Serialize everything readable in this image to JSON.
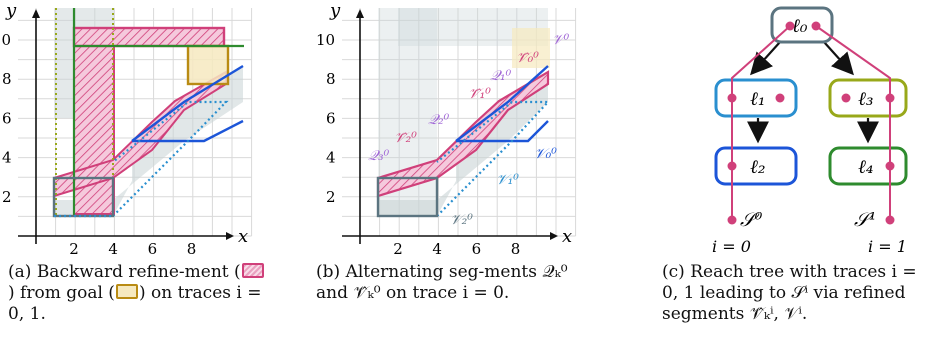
{
  "panel_a": {
    "axis_x": "x",
    "axis_y": "y",
    "x_ticks": [
      "2",
      "4",
      "6",
      "8"
    ],
    "y_ticks": [
      "2",
      "4",
      "6",
      "8",
      "10"
    ],
    "caption": {
      "label": "(a)",
      "part1": "Backward refine-ment (",
      "part2": ") from goal (",
      "part3": ") on traces i = 0, 1."
    }
  },
  "panel_b": {
    "axis_x": "x",
    "axis_y": "y",
    "x_ticks": [
      "2",
      "4",
      "6",
      "8"
    ],
    "y_ticks": [
      "2",
      "4",
      "6",
      "8",
      "10"
    ],
    "labels": {
      "v0_top": "𝒱⁰",
      "v0": "𝒱₀⁰",
      "v1": "𝒱₁⁰",
      "v2": "𝒱₂⁰",
      "vhat0": "𝒱̂₀⁰",
      "vhat1": "𝒱̂₁⁰",
      "vhat2": "𝒱̂₂⁰",
      "q0": "𝒬₀⁰",
      "q1": "𝒬₁⁰",
      "q2": "𝒬₂⁰",
      "q3": "𝒬₃⁰"
    },
    "caption": {
      "label": "(b)",
      "text": "Alternating seg-ments 𝒬ₖ⁰ and 𝒱̂ₖ⁰ on trace i = 0."
    }
  },
  "panel_c": {
    "nodes": {
      "l0": "ℓ₀",
      "l1": "ℓ₁",
      "l2": "ℓ₂",
      "l3": "ℓ₃",
      "l4": "ℓ₄"
    },
    "s0": "𝒮⁰",
    "s1": "𝒮¹",
    "i0": "i = 0",
    "i1": "i = 1",
    "caption": {
      "label": "(c)",
      "text": "Reach tree with traces i = 0, 1 leading to 𝒮ⁱ via refined segments 𝒱̂ₖⁱ, 𝒱ⁱ."
    }
  },
  "colors": {
    "pink": "#d0407a",
    "gold": "#b98b13",
    "green": "#2e8b2e",
    "blue": "#1c55d8",
    "lightblue": "#2a8fcf",
    "olive": "#98a81a",
    "slate": "#5b7480",
    "purple": "#a066d6"
  }
}
